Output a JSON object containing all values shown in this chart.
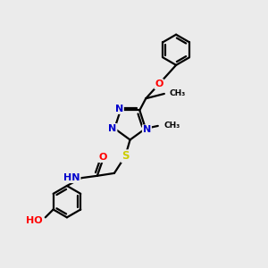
{
  "bg_color": "#ebebeb",
  "atom_colors": {
    "C": "#000000",
    "N": "#0000cc",
    "O": "#ff0000",
    "S": "#cccc00",
    "H": "#555555"
  },
  "bond_color": "#000000",
  "bond_width": 1.6,
  "figsize": [
    3.0,
    3.0
  ],
  "dpi": 100,
  "xlim": [
    0,
    10
  ],
  "ylim": [
    0,
    10
  ]
}
